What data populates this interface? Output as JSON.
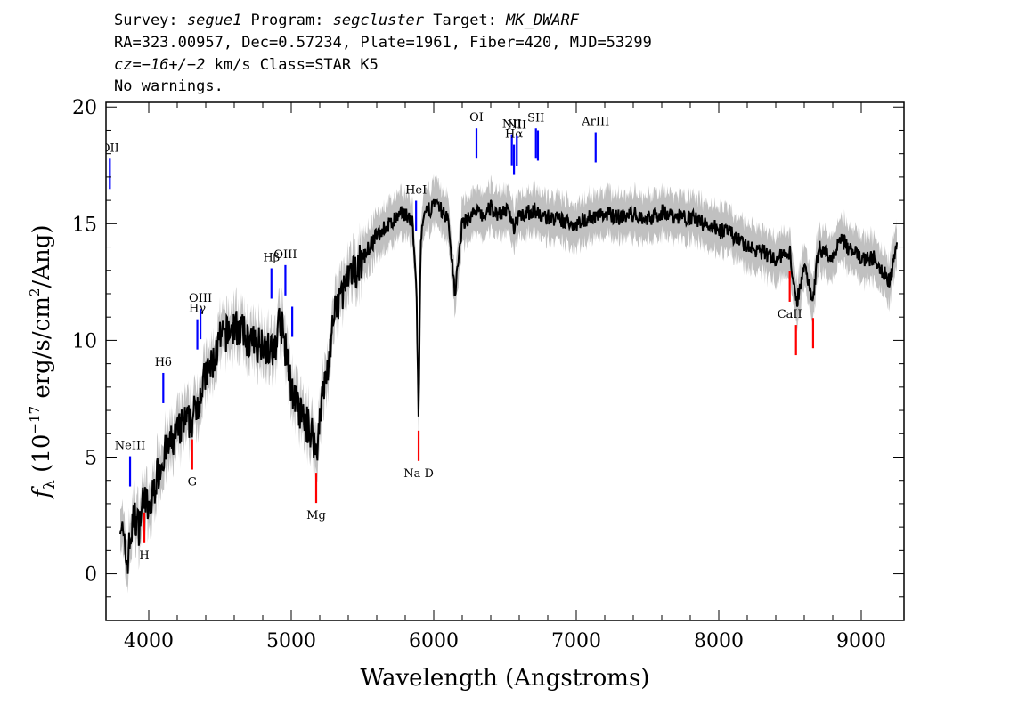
{
  "header": {
    "line1": {
      "survey_label": "Survey: ",
      "survey": "segue1",
      "program_label": " Program: ",
      "program": "segcluster",
      "target_label": " Target: ",
      "target": "MK_DWARF"
    },
    "line2": "RA=323.00957, Dec=0.57234, Plate=1961, Fiber=420, MJD=53299",
    "line3": {
      "cz_label": "cz",
      "cz_value": "=−16+/−2",
      "cz_units": " km/s Class=STAR K5"
    },
    "line4": "No warnings."
  },
  "chart_data": {
    "type": "line",
    "xlabel": "Wavelength (Angstroms)",
    "ylabel": {
      "f": "f",
      "sub": "λ",
      "rest": " (10",
      "exp": "−17",
      "rest2": " erg/s/cm",
      "exp2": "2",
      "rest3": "/Ang)"
    },
    "xlim": [
      3700,
      9300
    ],
    "ylim": [
      -2,
      20.2
    ],
    "x_ticks": [
      4000,
      5000,
      6000,
      7000,
      8000,
      9000
    ],
    "y_ticks": [
      0,
      5,
      10,
      15,
      20
    ],
    "grid": false,
    "colors": {
      "flux": "#000000",
      "error": "#c0c0c0",
      "emission": "#0000ff",
      "absorption": "#ff0000"
    },
    "series": [
      {
        "kind": "flux",
        "x": [
          3800,
          3830,
          3850,
          3870,
          3900,
          3930,
          3970,
          4000,
          4050,
          4100,
          4150,
          4200,
          4250,
          4300,
          4350,
          4400,
          4450,
          4500,
          4550,
          4600,
          4650,
          4700,
          4750,
          4800,
          4850,
          4880,
          4920,
          4950,
          5000,
          5050,
          5100,
          5150,
          5180,
          5200,
          5250,
          5300,
          5350,
          5400,
          5450,
          5500,
          5550,
          5600,
          5650,
          5700,
          5750,
          5800,
          5850,
          5880,
          5893,
          5910,
          5950,
          6000,
          6050,
          6100,
          6150,
          6200,
          6250,
          6300,
          6350,
          6400,
          6450,
          6500,
          6550,
          6563,
          6600,
          6650,
          6700,
          6750,
          6800,
          6900,
          7000,
          7100,
          7200,
          7300,
          7400,
          7500,
          7600,
          7700,
          7800,
          7900,
          8000,
          8100,
          8200,
          8300,
          8400,
          8500,
          8542,
          8600,
          8662,
          8700,
          8800,
          8850,
          8900,
          9000,
          9100,
          9150,
          9200,
          9250
        ],
        "y": [
          2.5,
          1.0,
          0.5,
          1.5,
          2.5,
          2.0,
          3.5,
          2.5,
          4.0,
          5.0,
          5.5,
          6.0,
          6.5,
          6.5,
          7.5,
          8.5,
          9.0,
          10.0,
          10.3,
          10.6,
          10.4,
          10.0,
          9.8,
          10.0,
          9.5,
          9.5,
          11.0,
          10.0,
          8.0,
          7.0,
          6.5,
          6.0,
          5.0,
          7.0,
          8.5,
          11.0,
          12.0,
          12.5,
          13.0,
          13.5,
          14.0,
          14.5,
          14.8,
          15.0,
          15.3,
          15.5,
          15.0,
          12.0,
          6.5,
          14.5,
          15.5,
          15.8,
          15.6,
          15.2,
          12.0,
          15.0,
          15.3,
          15.5,
          15.3,
          15.7,
          15.4,
          15.6,
          15.2,
          14.8,
          15.5,
          15.4,
          15.6,
          15.3,
          15.3,
          15.1,
          15.0,
          15.3,
          15.4,
          15.3,
          15.4,
          15.2,
          15.5,
          15.3,
          15.3,
          15.0,
          14.8,
          14.5,
          14.0,
          13.8,
          13.5,
          13.8,
          11.5,
          13.2,
          11.8,
          14.0,
          13.5,
          14.5,
          14.0,
          13.5,
          13.5,
          13.0,
          12.5,
          14.2
        ]
      }
    ],
    "spectral_lines": [
      {
        "label": "OII",
        "wave": 3727,
        "kind": "emission"
      },
      {
        "label": "NeIII",
        "wave": 3869,
        "kind": "emission"
      },
      {
        "label": "Hδ",
        "wave": 4102,
        "kind": "emission"
      },
      {
        "label": "Hγ",
        "wave": 4341,
        "kind": "emission"
      },
      {
        "label": "OIII",
        "wave": 4363,
        "kind": "emission"
      },
      {
        "label": "Hβ",
        "wave": 4861,
        "kind": "emission"
      },
      {
        "label": "OIII",
        "wave": 4959,
        "kind": "emission"
      },
      {
        "label": "",
        "wave": 5007,
        "kind": "emission"
      },
      {
        "label": "HeI",
        "wave": 5876,
        "kind": "emission"
      },
      {
        "label": "OI",
        "wave": 6300,
        "kind": "emission"
      },
      {
        "label": "NII",
        "wave": 6548,
        "kind": "emission"
      },
      {
        "label": "Hα",
        "wave": 6563,
        "kind": "emission"
      },
      {
        "label": "NII",
        "wave": 6583,
        "kind": "emission"
      },
      {
        "label": "SII",
        "wave": 6717,
        "kind": "emission"
      },
      {
        "label": "",
        "wave": 6731,
        "kind": "emission"
      },
      {
        "label": "ArIII",
        "wave": 7136,
        "kind": "emission"
      },
      {
        "label": "H",
        "wave": 3969,
        "kind": "absorption"
      },
      {
        "label": "G",
        "wave": 4305,
        "kind": "absorption"
      },
      {
        "label": "Mg",
        "wave": 5175,
        "kind": "absorption"
      },
      {
        "label": "Na D",
        "wave": 5894,
        "kind": "absorption"
      },
      {
        "label": "CaII",
        "wave": 8498,
        "kind": "absorption"
      },
      {
        "label": "",
        "wave": 8542,
        "kind": "absorption"
      },
      {
        "label": "",
        "wave": 8662,
        "kind": "absorption"
      }
    ]
  }
}
